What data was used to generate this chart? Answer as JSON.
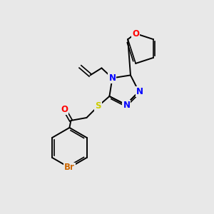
{
  "background_color": "#e8e8e8",
  "bond_color": "#000000",
  "atom_colors": {
    "O": "#ff0000",
    "N": "#0000ff",
    "S": "#cccc00",
    "Br": "#cc6600",
    "C": "#000000"
  },
  "font_size_atom": 8.5,
  "fig_size": [
    3.0,
    3.0
  ],
  "dpi": 100
}
